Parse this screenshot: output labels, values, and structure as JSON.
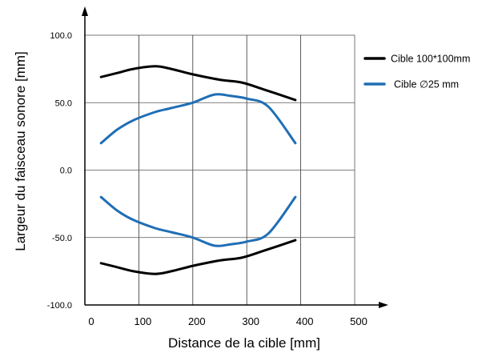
{
  "chart_data": {
    "type": "line",
    "title": "",
    "xlabel": "Distance de la cible [mm]",
    "ylabel": "Largeur du faisceau sonore  [mm]",
    "xlim": [
      0,
      500
    ],
    "ylim": [
      -100,
      100
    ],
    "x_ticks": [
      "0",
      "100",
      "200",
      "300",
      "400",
      "500"
    ],
    "y_ticks": [
      "100.0",
      "50.0",
      "0.0",
      "-50.0",
      "-100.0"
    ],
    "grid": true,
    "legend_position": "right",
    "series": [
      {
        "name": "Cible 100*100mm",
        "color": "#000000",
        "upper": [
          [
            30,
            69
          ],
          [
            60,
            72
          ],
          [
            90,
            75
          ],
          [
            130,
            77
          ],
          [
            160,
            75
          ],
          [
            200,
            71
          ],
          [
            250,
            67
          ],
          [
            290,
            65
          ],
          [
            330,
            60
          ],
          [
            390,
            52
          ]
        ],
        "lower": [
          [
            30,
            -69
          ],
          [
            60,
            -72
          ],
          [
            90,
            -75
          ],
          [
            130,
            -77
          ],
          [
            160,
            -75
          ],
          [
            200,
            -71
          ],
          [
            250,
            -67
          ],
          [
            290,
            -65
          ],
          [
            330,
            -60
          ],
          [
            390,
            -52
          ]
        ]
      },
      {
        "name": "Cible ∅25 mm",
        "color": "#1f6eb5",
        "upper": [
          [
            30,
            20
          ],
          [
            60,
            30
          ],
          [
            90,
            37
          ],
          [
            130,
            43
          ],
          [
            160,
            46
          ],
          [
            200,
            50
          ],
          [
            240,
            56
          ],
          [
            270,
            55
          ],
          [
            300,
            53
          ],
          [
            340,
            47
          ],
          [
            390,
            20
          ]
        ],
        "lower": [
          [
            30,
            -20
          ],
          [
            60,
            -30
          ],
          [
            90,
            -37
          ],
          [
            130,
            -43
          ],
          [
            160,
            -46
          ],
          [
            200,
            -50
          ],
          [
            240,
            -56
          ],
          [
            270,
            -55
          ],
          [
            300,
            -53
          ],
          [
            340,
            -47
          ],
          [
            390,
            -20
          ]
        ]
      }
    ]
  }
}
